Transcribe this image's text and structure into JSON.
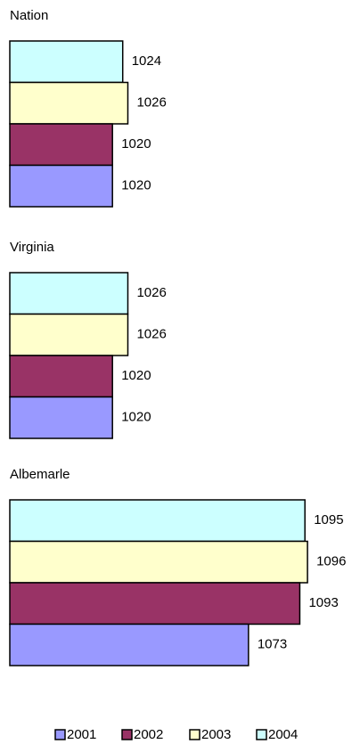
{
  "chart_data": {
    "type": "bar",
    "orientation": "horizontal",
    "categories": [
      "Nation",
      "Virginia",
      "Albemarle"
    ],
    "series": [
      {
        "name": "2001",
        "color": "#9999ff",
        "values": [
          1020,
          1020,
          1073
        ]
      },
      {
        "name": "2002",
        "color": "#993366",
        "values": [
          1020,
          1020,
          1093
        ]
      },
      {
        "name": "2003",
        "color": "#ffffcc",
        "values": [
          1026,
          1026,
          1096
        ]
      },
      {
        "name": "2004",
        "color": "#ccffff",
        "values": [
          1024,
          1026,
          1095
        ]
      }
    ],
    "xlim": [
      980,
      1110
    ]
  }
}
